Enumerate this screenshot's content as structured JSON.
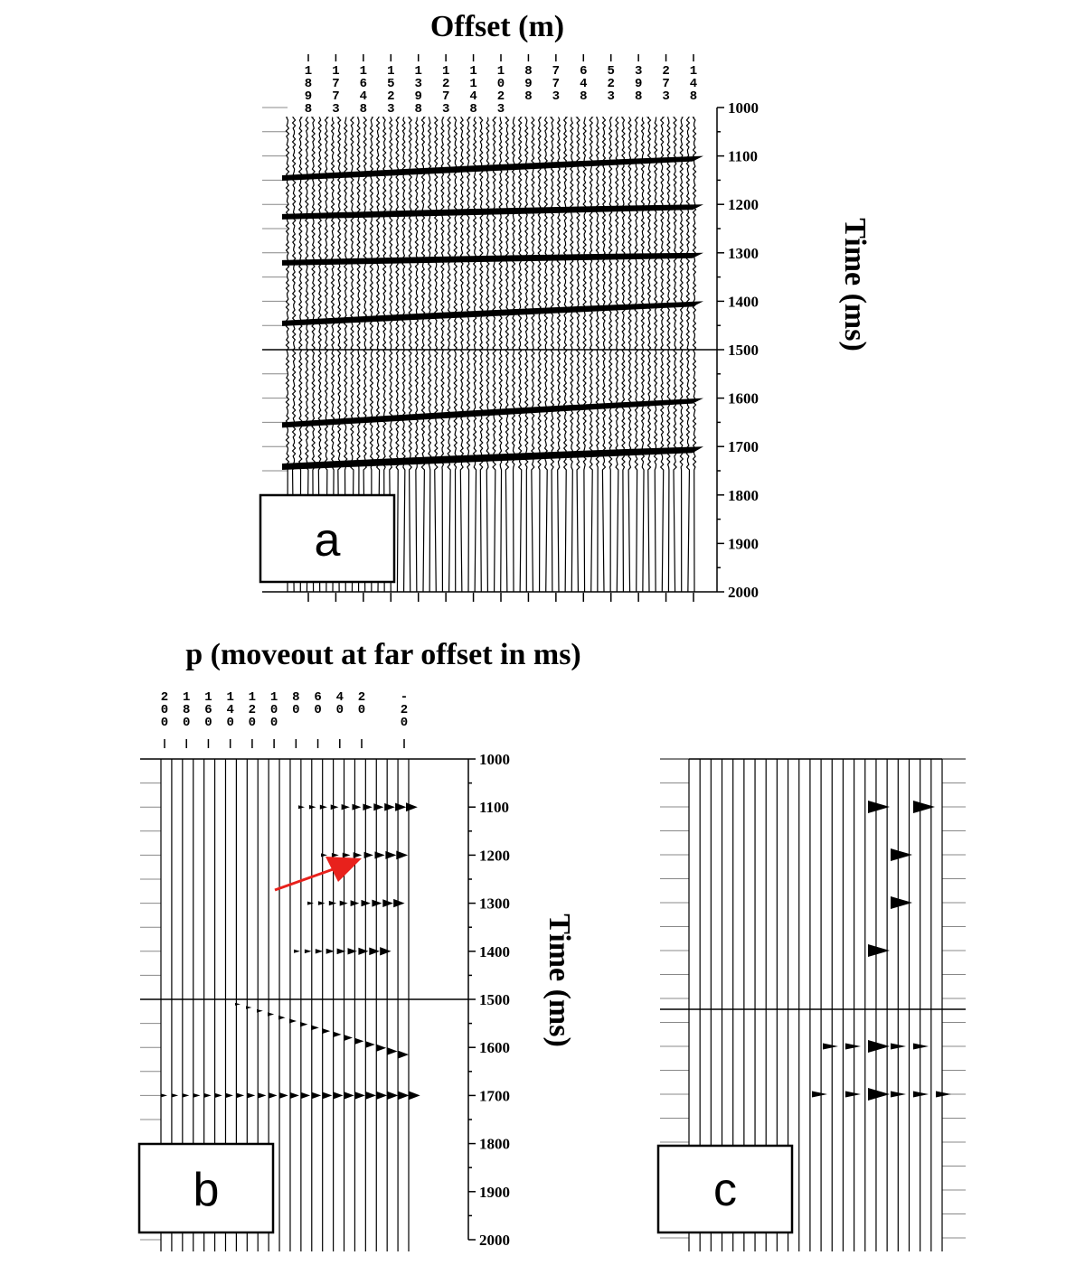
{
  "panel_a": {
    "title": "Offset (m)",
    "y_label": "Time (ms)",
    "panel_label": "a",
    "offset_labels": [
      "1898",
      "1773",
      "1648",
      "1523",
      "1398",
      "1273",
      "1148",
      "1023",
      "898",
      "773",
      "648",
      "523",
      "398",
      "273",
      "148"
    ],
    "time_ticks": [
      "1000",
      "1100",
      "1200",
      "1300",
      "1400",
      "1500",
      "1600",
      "1700",
      "1800",
      "1900",
      "2000"
    ]
  },
  "panel_b": {
    "title": "p (moveout at far offset in ms)",
    "y_label": "Time (ms)",
    "panel_label": "b",
    "p_labels": [
      "200",
      "180",
      "160",
      "140",
      "120",
      "100",
      "80",
      "60",
      "40",
      "20",
      "-20"
    ],
    "time_ticks": [
      "1000",
      "1100",
      "1200",
      "1300",
      "1400",
      "1500",
      "1600",
      "1700",
      "1800",
      "1900",
      "2000"
    ]
  },
  "panel_c": {
    "panel_label": "c"
  },
  "annotation": {
    "arrow_color": "#e8211c"
  },
  "chart_data": {
    "type": "seismic-gather",
    "panels": [
      {
        "name": "a",
        "domain": "offset",
        "x_values": [
          1898,
          1773,
          1648,
          1523,
          1398,
          1273,
          1148,
          1023,
          898,
          773,
          648,
          523,
          398,
          273,
          148
        ],
        "ylim": [
          1000,
          2000
        ],
        "events_time_ms_near_offset": [
          1100,
          1200,
          1300,
          1400,
          1600,
          1700
        ],
        "events_time_ms_far_offset": [
          1140,
          1220,
          1315,
          1440,
          1650,
          1735
        ]
      },
      {
        "name": "b",
        "domain": "tau-p",
        "x_values": [
          200,
          180,
          160,
          140,
          120,
          100,
          80,
          60,
          40,
          20,
          -20
        ],
        "ylim": [
          1000,
          2000
        ],
        "events_time_ms": [
          1100,
          1200,
          1300,
          1400,
          1600,
          1700
        ]
      },
      {
        "name": "c",
        "domain": "tau-p",
        "ylim": [
          1000,
          2000
        ],
        "events_time_ms": [
          1100,
          1200,
          1300,
          1400,
          1600,
          1700
        ]
      }
    ]
  }
}
